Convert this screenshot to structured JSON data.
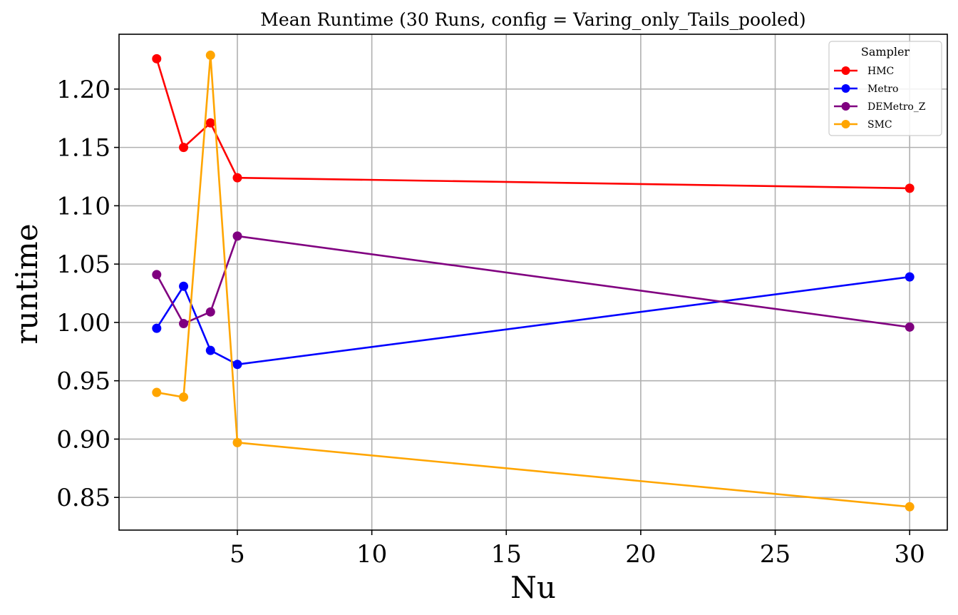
{
  "chart_data": {
    "type": "line",
    "title": "Mean Runtime (30 Runs, config = Varing_only_Tails_pooled)",
    "xlabel": "Nu",
    "ylabel": "runtime",
    "xlim": [
      0.6,
      31.4
    ],
    "ylim": [
      0.822,
      1.247
    ],
    "x_ticks": [
      5,
      10,
      15,
      20,
      25,
      30
    ],
    "x_tick_labels": [
      "5",
      "10",
      "15",
      "20",
      "25",
      "30"
    ],
    "y_ticks": [
      0.85,
      0.9,
      0.95,
      1.0,
      1.05,
      1.1,
      1.15,
      1.2
    ],
    "y_tick_labels": [
      "0.85",
      "0.90",
      "0.95",
      "1.00",
      "1.05",
      "1.10",
      "1.15",
      "1.20"
    ],
    "grid": true,
    "legend": {
      "title": "Sampler",
      "placement": "top-right"
    },
    "x": [
      2,
      3,
      4,
      5,
      30
    ],
    "series": [
      {
        "name": "HMC",
        "color": "#ff0000",
        "values": [
          1.226,
          1.15,
          1.171,
          1.124,
          1.115
        ]
      },
      {
        "name": "Metro",
        "color": "#0000ff",
        "values": [
          0.995,
          1.031,
          0.976,
          0.964,
          1.039
        ]
      },
      {
        "name": "DEMetro_Z",
        "color": "#800080",
        "values": [
          1.041,
          0.999,
          1.009,
          1.074,
          0.996
        ]
      },
      {
        "name": "SMC",
        "color": "#ffa500",
        "values": [
          0.94,
          0.936,
          1.229,
          0.897,
          0.842
        ]
      }
    ]
  }
}
